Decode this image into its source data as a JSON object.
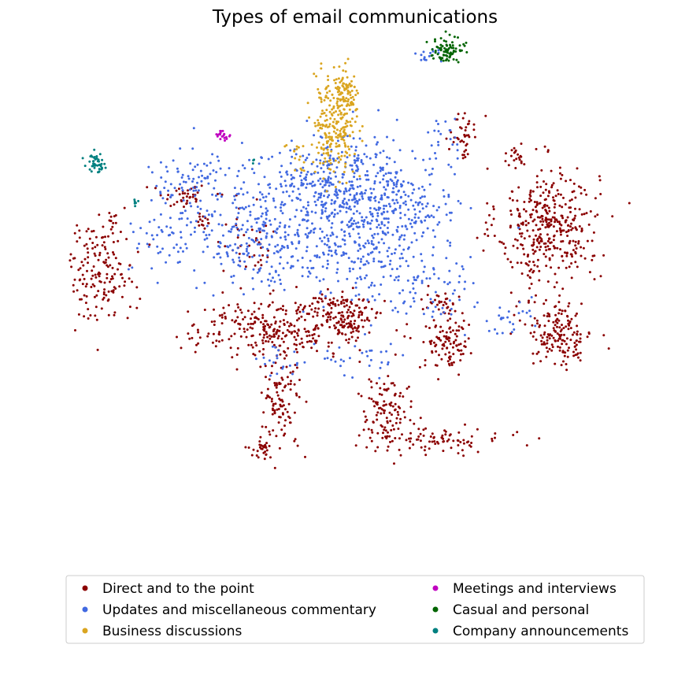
{
  "chart_data": {
    "type": "scatter",
    "title": "Types of email communications",
    "xlabel": "",
    "ylabel": "",
    "axes_visible": false,
    "grid": false,
    "legend_placement": "lower-center",
    "legend_columns": 2,
    "series": [
      {
        "name": "Direct and to the point",
        "color": "#8B0000",
        "clusters": [
          {
            "cx": 0.84,
            "cy": 0.61,
            "sx": 0.045,
            "sy": 0.06,
            "n": 380
          },
          {
            "cx": 0.86,
            "cy": 0.39,
            "sx": 0.03,
            "sy": 0.035,
            "n": 170
          },
          {
            "cx": 0.04,
            "cy": 0.52,
            "sx": 0.03,
            "sy": 0.05,
            "n": 160
          },
          {
            "cx": 0.36,
            "cy": 0.4,
            "sx": 0.08,
            "sy": 0.03,
            "n": 300
          },
          {
            "cx": 0.47,
            "cy": 0.44,
            "sx": 0.03,
            "sy": 0.018,
            "n": 80
          },
          {
            "cx": 0.48,
            "cy": 0.41,
            "sx": 0.02,
            "sy": 0.015,
            "n": 50
          },
          {
            "cx": 0.66,
            "cy": 0.38,
            "sx": 0.02,
            "sy": 0.035,
            "n": 110
          },
          {
            "cx": 0.36,
            "cy": 0.25,
            "sx": 0.018,
            "sy": 0.045,
            "n": 100
          },
          {
            "cx": 0.55,
            "cy": 0.23,
            "sx": 0.025,
            "sy": 0.035,
            "n": 110
          },
          {
            "cx": 0.64,
            "cy": 0.17,
            "sx": 0.06,
            "sy": 0.012,
            "n": 90
          },
          {
            "cx": 0.33,
            "cy": 0.15,
            "sx": 0.012,
            "sy": 0.01,
            "n": 30
          },
          {
            "cx": 0.69,
            "cy": 0.8,
            "sx": 0.012,
            "sy": 0.025,
            "n": 40
          },
          {
            "cx": 0.78,
            "cy": 0.75,
            "sx": 0.01,
            "sy": 0.012,
            "n": 20
          },
          {
            "cx": 0.19,
            "cy": 0.67,
            "sx": 0.025,
            "sy": 0.012,
            "n": 40
          },
          {
            "cx": 0.22,
            "cy": 0.62,
            "sx": 0.008,
            "sy": 0.012,
            "n": 14
          },
          {
            "cx": 0.06,
            "cy": 0.63,
            "sx": 0.004,
            "sy": 0.01,
            "n": 8
          },
          {
            "cx": 0.3,
            "cy": 0.57,
            "sx": 0.03,
            "sy": 0.04,
            "n": 40
          },
          {
            "cx": 0.65,
            "cy": 0.45,
            "sx": 0.02,
            "sy": 0.02,
            "n": 20
          }
        ]
      },
      {
        "name": "Updates and miscellaneous commentary",
        "color": "#4169E1",
        "clusters": [
          {
            "cx": 0.5,
            "cy": 0.62,
            "sx": 0.07,
            "sy": 0.08,
            "n": 560
          },
          {
            "cx": 0.32,
            "cy": 0.59,
            "sx": 0.06,
            "sy": 0.05,
            "n": 230
          },
          {
            "cx": 0.42,
            "cy": 0.71,
            "sx": 0.06,
            "sy": 0.04,
            "n": 170
          },
          {
            "cx": 0.2,
            "cy": 0.7,
            "sx": 0.04,
            "sy": 0.04,
            "n": 90
          },
          {
            "cx": 0.6,
            "cy": 0.66,
            "sx": 0.05,
            "sy": 0.04,
            "n": 80
          },
          {
            "cx": 0.62,
            "cy": 0.48,
            "sx": 0.05,
            "sy": 0.04,
            "n": 70
          },
          {
            "cx": 0.15,
            "cy": 0.58,
            "sx": 0.03,
            "sy": 0.04,
            "n": 50
          },
          {
            "cx": 0.63,
            "cy": 0.96,
            "sx": 0.01,
            "sy": 0.008,
            "n": 15
          },
          {
            "cx": 0.76,
            "cy": 0.42,
            "sx": 0.025,
            "sy": 0.02,
            "n": 25
          },
          {
            "cx": 0.36,
            "cy": 0.33,
            "sx": 0.02,
            "sy": 0.02,
            "n": 20
          },
          {
            "cx": 0.5,
            "cy": 0.34,
            "sx": 0.04,
            "sy": 0.02,
            "n": 30
          },
          {
            "cx": 0.65,
            "cy": 0.78,
            "sx": 0.02,
            "sy": 0.03,
            "n": 25
          }
        ]
      },
      {
        "name": "Business discussions",
        "color": "#DAA520",
        "clusters": [
          {
            "cx": 0.46,
            "cy": 0.82,
            "sx": 0.02,
            "sy": 0.05,
            "n": 260
          },
          {
            "cx": 0.48,
            "cy": 0.88,
            "sx": 0.012,
            "sy": 0.02,
            "n": 60
          },
          {
            "cx": 0.39,
            "cy": 0.76,
            "sx": 0.01,
            "sy": 0.015,
            "n": 15
          }
        ]
      },
      {
        "name": "Meetings and interviews",
        "color": "#C000C0",
        "clusters": [
          {
            "cx": 0.26,
            "cy": 0.795,
            "sx": 0.008,
            "sy": 0.005,
            "n": 20
          }
        ]
      },
      {
        "name": "Casual and personal",
        "color": "#006400",
        "clusters": [
          {
            "cx": 0.66,
            "cy": 0.97,
            "sx": 0.015,
            "sy": 0.012,
            "n": 80
          },
          {
            "cx": 0.65,
            "cy": 1.01,
            "sx": 0.004,
            "sy": 0.003,
            "n": 5
          }
        ]
      },
      {
        "name": "Company announcements",
        "color": "#008080",
        "clusters": [
          {
            "cx": 0.03,
            "cy": 0.74,
            "sx": 0.008,
            "sy": 0.01,
            "n": 45
          },
          {
            "cx": 0.1,
            "cy": 0.66,
            "sx": 0.004,
            "sy": 0.006,
            "n": 6
          },
          {
            "cx": 0.31,
            "cy": 0.74,
            "sx": 0.003,
            "sy": 0.003,
            "n": 3
          }
        ]
      }
    ]
  }
}
